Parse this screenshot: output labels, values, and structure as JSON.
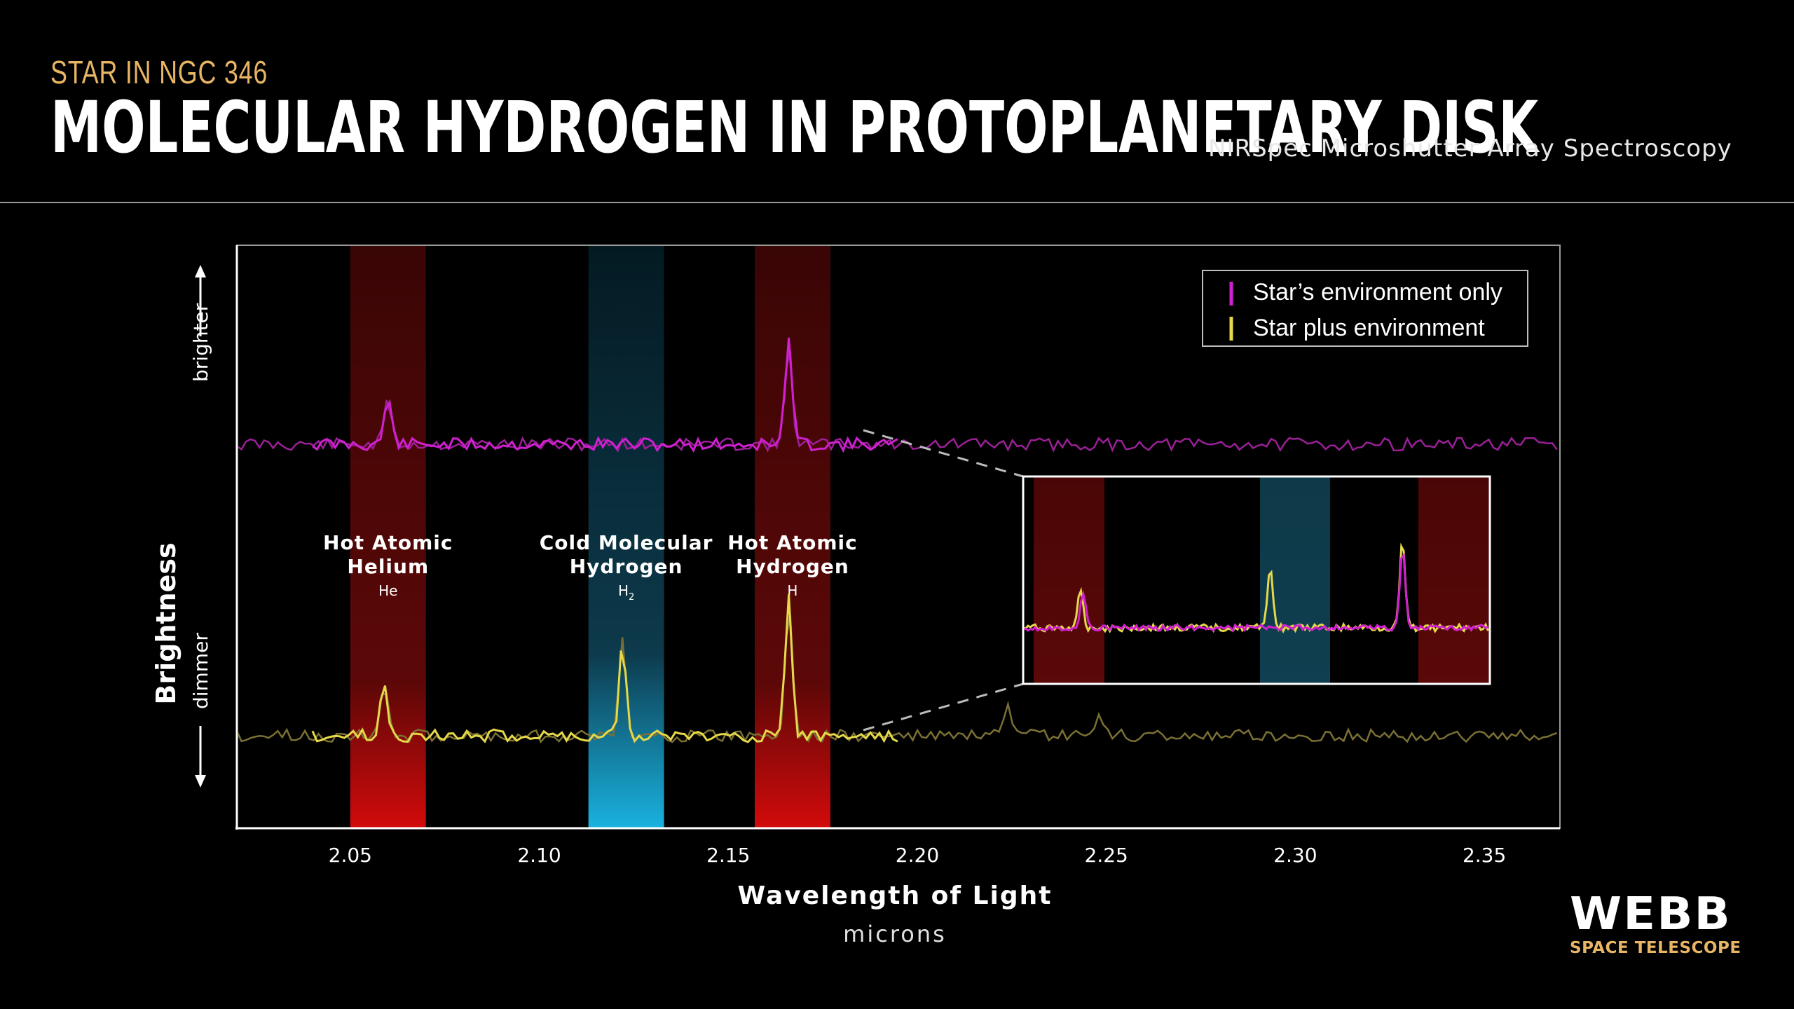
{
  "header": {
    "kicker": "STAR IN NGC 346",
    "title": "MOLECULAR HYDROGEN IN PROTOPLANETARY DISK",
    "subtitle": "NIRSpec Microshutter Array Spectroscopy"
  },
  "logo": {
    "main": "WEBB",
    "sub": "SPACE TELESCOPE"
  },
  "chart_data": {
    "type": "line",
    "xlabel": "Wavelength of Light",
    "xunit": "microns",
    "ylabel": "Brightness",
    "y_direction_labels": {
      "top": "brighter",
      "bottom": "dimmer"
    },
    "xlim": [
      2.02,
      2.37
    ],
    "xticks": [
      "2.05",
      "2.10",
      "2.15",
      "2.20",
      "2.25",
      "2.30",
      "2.35"
    ],
    "xtick_values": [
      2.05,
      2.1,
      2.15,
      2.2,
      2.25,
      2.3,
      2.35
    ],
    "legend_position": "top-right",
    "bands": [
      {
        "x0": 2.05,
        "x1": 2.07,
        "color": "#c40a0a",
        "label": [
          "Hot Atomic",
          "Helium"
        ],
        "symbol": "He"
      },
      {
        "x0": 2.113,
        "x1": 2.133,
        "color": "#19a7d6",
        "label": [
          "Cold Molecular",
          "Hydrogen"
        ],
        "symbol": "H",
        "symbol_subscript": "2"
      },
      {
        "x0": 2.157,
        "x1": 2.177,
        "color": "#c40a0a",
        "label": [
          "Hot Atomic",
          "Hydrogen"
        ],
        "symbol": "H"
      }
    ],
    "series": [
      {
        "name": "Star’s environment only",
        "color": "#d020d0",
        "baseline": 0.0,
        "peaks": [
          {
            "x": 2.06,
            "height": 0.45
          },
          {
            "x": 2.166,
            "height": 1.0
          }
        ]
      },
      {
        "name": "Star plus environment",
        "color": "#e5d84a",
        "baseline": 0.0,
        "peaks": [
          {
            "x": 2.059,
            "height": 0.52
          },
          {
            "x": 2.122,
            "height": 0.9
          },
          {
            "x": 2.166,
            "height": 1.3
          },
          {
            "x": 2.224,
            "height": 0.25
          },
          {
            "x": 2.248,
            "height": 0.2
          }
        ]
      }
    ],
    "inset": {
      "xlim": [
        2.185,
        2.37
      ],
      "series_overlay": true
    }
  }
}
